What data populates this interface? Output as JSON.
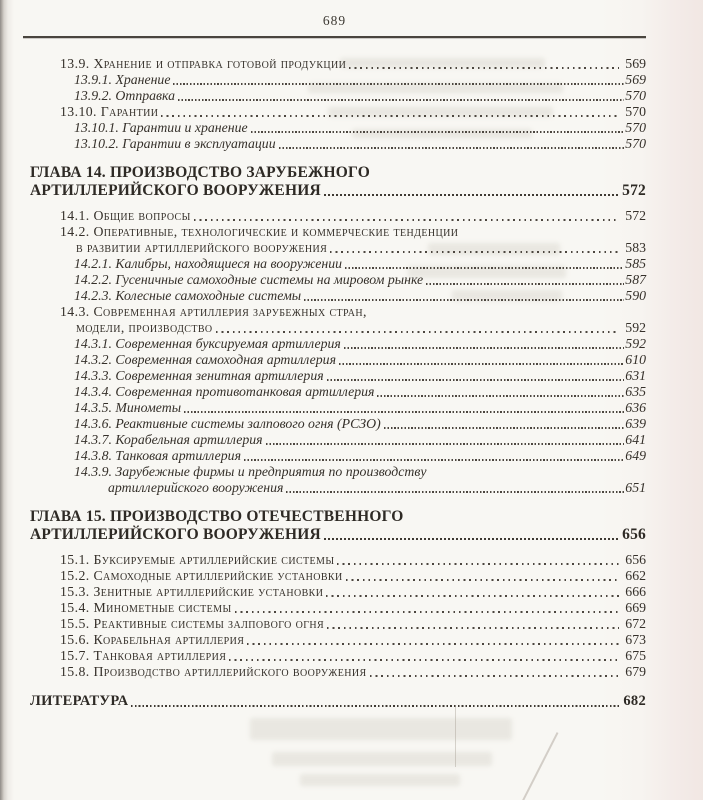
{
  "page": {
    "number": "689",
    "paper_color": "#f8f7f3",
    "ink_color": "#35302a"
  },
  "toc": {
    "entries": [
      {
        "style": "section",
        "lines": [
          "13.9. Хранение и отправка готовой продукции"
        ],
        "page": "569"
      },
      {
        "style": "subsection",
        "lines": [
          "13.9.1. Хранение"
        ],
        "page": "569"
      },
      {
        "style": "subsection",
        "lines": [
          "13.9.2. Отправка"
        ],
        "page": "570"
      },
      {
        "style": "section",
        "lines": [
          "13.10. Гарантии"
        ],
        "page": "570"
      },
      {
        "style": "subsection",
        "lines": [
          "13.10.1. Гарантии и хранение"
        ],
        "page": "570"
      },
      {
        "style": "subsection",
        "lines": [
          "13.10.2. Гарантии в эксплуатации"
        ],
        "page": "570"
      },
      {
        "style": "chapter",
        "lines": [
          "ГЛАВА 14. ПРОИЗВОДСТВО ЗАРУБЕЖНОГО",
          "АРТИЛЛЕРИЙСКОГО ВООРУЖЕНИЯ"
        ],
        "page": "572"
      },
      {
        "style": "section",
        "lines": [
          "14.1. Общие вопросы"
        ],
        "page": "572"
      },
      {
        "style": "section",
        "lines": [
          "14.2. Оперативные, технологические и коммерческие тенденции",
          "в развитии артиллерийского вооружения"
        ],
        "page": "583"
      },
      {
        "style": "subsection",
        "lines": [
          "14.2.1. Калибры, находящиеся на вооружении"
        ],
        "page": "585"
      },
      {
        "style": "subsection",
        "lines": [
          "14.2.2. Гусеничные самоходные системы на мировом рынке"
        ],
        "page": "587"
      },
      {
        "style": "subsection",
        "lines": [
          "14.2.3. Колесные самоходные системы"
        ],
        "page": "590"
      },
      {
        "style": "section",
        "lines": [
          "14.3. Современная артиллерия зарубежных стран,",
          "модели, производство"
        ],
        "page": "592"
      },
      {
        "style": "subsection",
        "lines": [
          "14.3.1. Современная буксируемая артиллерия"
        ],
        "page": "592"
      },
      {
        "style": "subsection",
        "lines": [
          "14.3.2. Современная самоходная артиллерия"
        ],
        "page": "610"
      },
      {
        "style": "subsection",
        "lines": [
          "14.3.3. Современная зенитная артиллерия"
        ],
        "page": "631"
      },
      {
        "style": "subsection",
        "lines": [
          "14.3.4. Современная противотанковая артиллерия"
        ],
        "page": "635"
      },
      {
        "style": "subsection",
        "lines": [
          "14.3.5. Минометы"
        ],
        "page": "636"
      },
      {
        "style": "subsection",
        "lines": [
          "14.3.6. Реактивные системы залпового огня (РСЗО)"
        ],
        "page": "639"
      },
      {
        "style": "subsection",
        "lines": [
          "14.3.7. Корабельная артиллерия"
        ],
        "page": "641"
      },
      {
        "style": "subsection",
        "lines": [
          "14.3.8. Танковая артиллерия"
        ],
        "page": "649"
      },
      {
        "style": "subsection",
        "lines": [
          "14.3.9. Зарубежные фирмы и предприятия по производству",
          "артиллерийского вооружения"
        ],
        "page": "651"
      },
      {
        "style": "chapter",
        "lines": [
          "ГЛАВА 15. ПРОИЗВОДСТВО ОТЕЧЕСТВЕННОГО",
          "АРТИЛЛЕРИЙСКОГО ВООРУЖЕНИЯ"
        ],
        "page": "656"
      },
      {
        "style": "section",
        "lines": [
          "15.1. Буксируемые артиллерийские системы"
        ],
        "page": "656"
      },
      {
        "style": "section",
        "lines": [
          "15.2. Самоходные артиллерийские установки"
        ],
        "page": "662"
      },
      {
        "style": "section",
        "lines": [
          "15.3. Зенитные артиллерийские установки"
        ],
        "page": "666"
      },
      {
        "style": "section",
        "lines": [
          "15.4. Минометные системы"
        ],
        "page": "669"
      },
      {
        "style": "section",
        "lines": [
          "15.5. Реактивные системы залпового огня"
        ],
        "page": "672"
      },
      {
        "style": "section",
        "lines": [
          "15.6. Корабельная артиллерия"
        ],
        "page": "673"
      },
      {
        "style": "section",
        "lines": [
          "15.7. Танковая артиллерия"
        ],
        "page": "675"
      },
      {
        "style": "section",
        "lines": [
          "15.8. Производство артиллерийского вооружения"
        ],
        "page": "679"
      },
      {
        "style": "literature",
        "lines": [
          "ЛИТЕРАТУРА"
        ],
        "page": "682"
      }
    ]
  }
}
